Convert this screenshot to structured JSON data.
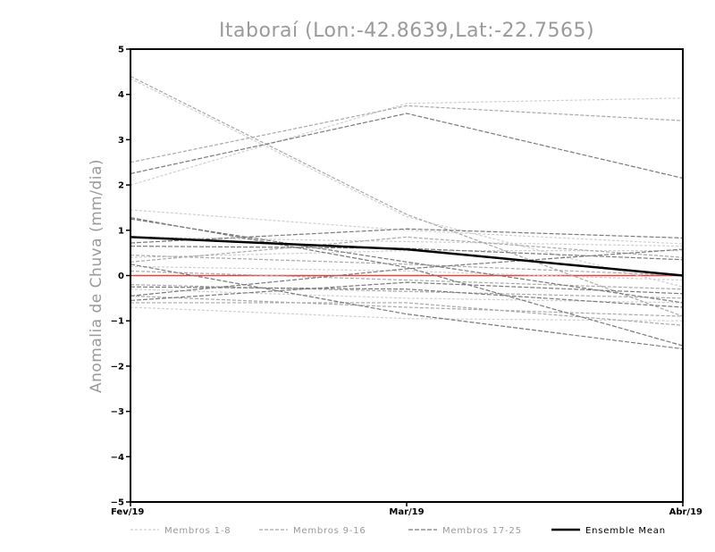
{
  "chart_data": {
    "type": "line",
    "title": "Itaboraí (Lon:-42.8639,Lat:-22.7565)",
    "xlabel": "",
    "ylabel": "Anomalia de Chuva (mm/dia)",
    "categories": [
      "Fev/19",
      "Mar/19",
      "Abr/19"
    ],
    "ylim": [
      -5,
      5
    ],
    "yticks": [
      -5,
      -4,
      -3,
      -2,
      -1,
      0,
      1,
      2,
      3,
      4,
      5
    ],
    "grid": false,
    "legend_position": "bottom",
    "colors": {
      "group_1_8": "#cfcfcf",
      "group_9_16": "#a8a8a8",
      "group_17_25": "#7a7a7a",
      "ensemble_mean": "#000000",
      "zero_line": "#e8403a"
    },
    "legend": [
      {
        "label": "Membros 1-8",
        "group": "g1"
      },
      {
        "label": "Membros 9-16",
        "group": "g2"
      },
      {
        "label": "Membros 17-25",
        "group": "g3"
      },
      {
        "label": "Ensemble Mean",
        "group": "mean"
      }
    ],
    "members": [
      {
        "group": "g1",
        "values": [
          4.35,
          1.3,
          -0.25
        ]
      },
      {
        "group": "g1",
        "values": [
          2.0,
          3.8,
          3.92
        ]
      },
      {
        "group": "g1",
        "values": [
          1.45,
          1.0,
          0.7
        ]
      },
      {
        "group": "g1",
        "values": [
          0.85,
          0.75,
          0.65
        ]
      },
      {
        "group": "g1",
        "values": [
          0.4,
          0.55,
          0.55
        ]
      },
      {
        "group": "g1",
        "values": [
          0.2,
          0.1,
          -0.1
        ]
      },
      {
        "group": "g1",
        "values": [
          -0.3,
          -0.5,
          -0.6
        ]
      },
      {
        "group": "g1",
        "values": [
          -0.7,
          -0.95,
          -1.0
        ]
      },
      {
        "group": "g2",
        "values": [
          4.4,
          1.35,
          -0.9
        ]
      },
      {
        "group": "g2",
        "values": [
          2.5,
          3.75,
          3.42
        ]
      },
      {
        "group": "g2",
        "values": [
          0.3,
          0.85,
          0.4
        ]
      },
      {
        "group": "g2",
        "values": [
          0.45,
          0.25,
          0.0
        ]
      },
      {
        "group": "g2",
        "values": [
          0.1,
          -0.1,
          -0.3
        ]
      },
      {
        "group": "g2",
        "values": [
          -0.2,
          -0.35,
          -0.5
        ]
      },
      {
        "group": "g2",
        "values": [
          -0.45,
          -0.7,
          -0.9
        ]
      },
      {
        "group": "g2",
        "values": [
          -0.6,
          -0.6,
          -1.1
        ]
      },
      {
        "group": "g3",
        "values": [
          2.25,
          3.58,
          2.15
        ]
      },
      {
        "group": "g3",
        "values": [
          1.28,
          0.18,
          -1.55
        ]
      },
      {
        "group": "g3",
        "values": [
          0.72,
          1.03,
          0.83
        ]
      },
      {
        "group": "g3",
        "values": [
          1.25,
          0.3,
          -0.6
        ]
      },
      {
        "group": "g3",
        "values": [
          0.65,
          0.6,
          0.35
        ]
      },
      {
        "group": "g3",
        "values": [
          -0.45,
          0.15,
          0.58
        ]
      },
      {
        "group": "g3",
        "values": [
          -0.25,
          -0.3,
          -0.7
        ]
      },
      {
        "group": "g3",
        "values": [
          -0.55,
          -0.15,
          -0.4
        ]
      },
      {
        "group": "g3",
        "values": [
          0.25,
          -0.85,
          -1.62
        ]
      }
    ],
    "ensemble_mean": [
      0.85,
      0.58,
      0.0
    ],
    "zero_line": 0
  }
}
